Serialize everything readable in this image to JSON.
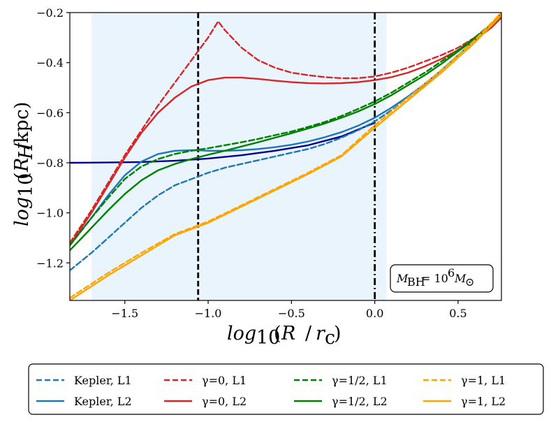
{
  "chart_data": {
    "type": "line",
    "title": "",
    "xlabel": "log10 (R / rc)",
    "ylabel": "log10 (RH/kpc)",
    "xlim": [
      -1.83,
      0.76
    ],
    "ylim": [
      -1.35,
      -0.2
    ],
    "x_ticks": [
      -1.5,
      -1.0,
      -0.5,
      0.0,
      0.5
    ],
    "x_tick_labels": [
      "−1.5",
      "−1.0",
      "−0.5",
      "0.0",
      "0.5"
    ],
    "y_ticks": [
      -1.2,
      -1.0,
      -0.8,
      -0.6,
      -0.4,
      -0.2
    ],
    "y_tick_labels": [
      "−1.2",
      "−1.0",
      "−0.8",
      "−0.6",
      "−0.4",
      "−0.2"
    ],
    "shaded_region_x": [
      -1.7,
      0.07
    ],
    "shaded_color": "#eaf4fc",
    "vlines": [
      {
        "name": "dashed-vline",
        "x": -1.06,
        "style": "dashed",
        "color": "#000000"
      },
      {
        "name": "dashdot-vline",
        "x": 0.0,
        "style": "dashdot",
        "color": "#000000"
      }
    ],
    "annotation": "M_BH = 10^6 M_sun",
    "annotation_position": "bottom-right",
    "legend_position": "bottom, outside",
    "series": [
      {
        "name": "Kepler, L1",
        "color": "#1f77b4",
        "style": "dashed",
        "in_legend": true,
        "x": [
          -1.83,
          -1.7,
          -1.6,
          -1.5,
          -1.4,
          -1.3,
          -1.2,
          -1.1,
          -1.06,
          -1.0,
          -0.9,
          -0.8,
          -0.7,
          -0.6,
          -0.5,
          -0.4,
          -0.3,
          -0.2,
          -0.1,
          0.0,
          0.1,
          0.2,
          0.3,
          0.4,
          0.5,
          0.6,
          0.7,
          0.76
        ],
        "y": [
          -1.23,
          -1.16,
          -1.1,
          -1.04,
          -0.98,
          -0.93,
          -0.89,
          -0.865,
          -0.855,
          -0.84,
          -0.82,
          -0.805,
          -0.79,
          -0.775,
          -0.76,
          -0.745,
          -0.725,
          -0.7,
          -0.67,
          -0.635,
          -0.59,
          -0.54,
          -0.49,
          -0.43,
          -0.37,
          -0.31,
          -0.25,
          -0.22
        ]
      },
      {
        "name": "Kepler, L2",
        "color": "#1f77b4",
        "style": "solid",
        "in_legend": true,
        "x": [
          -1.83,
          -1.7,
          -1.6,
          -1.5,
          -1.4,
          -1.3,
          -1.2,
          -1.1,
          -1.06,
          -1.0,
          -0.9,
          -0.8,
          -0.7,
          -0.6,
          -0.5,
          -0.4,
          -0.3,
          -0.2,
          -0.1,
          0.0,
          0.1,
          0.2,
          0.3,
          0.4,
          0.5,
          0.6,
          0.7,
          0.76
        ],
        "y": [
          -1.13,
          -1.02,
          -0.93,
          -0.85,
          -0.795,
          -0.765,
          -0.752,
          -0.75,
          -0.75,
          -0.752,
          -0.752,
          -0.75,
          -0.745,
          -0.738,
          -0.728,
          -0.715,
          -0.698,
          -0.678,
          -0.652,
          -0.62,
          -0.58,
          -0.535,
          -0.485,
          -0.43,
          -0.37,
          -0.31,
          -0.25,
          -0.21
        ]
      },
      {
        "name": "γ=0, L1",
        "color": "#d62728",
        "style": "dashed",
        "in_legend": true,
        "x": [
          -1.83,
          -1.7,
          -1.6,
          -1.5,
          -1.4,
          -1.3,
          -1.2,
          -1.1,
          -1.0,
          -0.94,
          -0.9,
          -0.8,
          -0.7,
          -0.6,
          -0.5,
          -0.4,
          -0.3,
          -0.2,
          -0.1,
          0.0,
          0.1,
          0.2,
          0.3,
          0.4,
          0.5,
          0.6,
          0.7,
          0.76
        ],
        "y": [
          -1.12,
          -0.99,
          -0.88,
          -0.77,
          -0.67,
          -0.57,
          -0.48,
          -0.39,
          -0.3,
          -0.235,
          -0.27,
          -0.34,
          -0.39,
          -0.42,
          -0.44,
          -0.45,
          -0.458,
          -0.462,
          -0.462,
          -0.455,
          -0.44,
          -0.42,
          -0.395,
          -0.37,
          -0.34,
          -0.3,
          -0.25,
          -0.2
        ]
      },
      {
        "name": "γ=0, L2",
        "color": "#d62728",
        "style": "solid",
        "in_legend": true,
        "x": [
          -1.83,
          -1.7,
          -1.6,
          -1.5,
          -1.4,
          -1.3,
          -1.2,
          -1.1,
          -1.0,
          -0.9,
          -0.8,
          -0.7,
          -0.6,
          -0.5,
          -0.4,
          -0.3,
          -0.2,
          -0.1,
          0.0,
          0.1,
          0.2,
          0.3,
          0.4,
          0.5,
          0.6,
          0.7,
          0.76
        ],
        "y": [
          -1.13,
          -1.0,
          -0.89,
          -0.78,
          -0.68,
          -0.6,
          -0.54,
          -0.495,
          -0.47,
          -0.46,
          -0.46,
          -0.465,
          -0.472,
          -0.478,
          -0.482,
          -0.483,
          -0.482,
          -0.478,
          -0.47,
          -0.458,
          -0.44,
          -0.415,
          -0.385,
          -0.35,
          -0.31,
          -0.26,
          -0.22
        ]
      },
      {
        "name": "γ=1/2, L1",
        "color": "#008000",
        "style": "dashed",
        "in_legend": true,
        "x": [
          -1.83,
          -1.7,
          -1.6,
          -1.5,
          -1.4,
          -1.3,
          -1.2,
          -1.1,
          -1.0,
          -0.9,
          -0.8,
          -0.7,
          -0.6,
          -0.5,
          -0.4,
          -0.3,
          -0.2,
          -0.1,
          0.0,
          0.1,
          0.2,
          0.3,
          0.4,
          0.5,
          0.6,
          0.7,
          0.76
        ],
        "y": [
          -1.13,
          -1.02,
          -0.94,
          -0.865,
          -0.815,
          -0.785,
          -0.765,
          -0.752,
          -0.742,
          -0.73,
          -0.718,
          -0.705,
          -0.69,
          -0.675,
          -0.657,
          -0.637,
          -0.613,
          -0.585,
          -0.555,
          -0.52,
          -0.48,
          -0.44,
          -0.395,
          -0.35,
          -0.3,
          -0.245,
          -0.21
        ]
      },
      {
        "name": "γ=1/2, L2",
        "color": "#008000",
        "style": "solid",
        "in_legend": true,
        "x": [
          -1.83,
          -1.7,
          -1.6,
          -1.5,
          -1.4,
          -1.3,
          -1.2,
          -1.1,
          -1.0,
          -0.9,
          -0.8,
          -0.7,
          -0.6,
          -0.5,
          -0.4,
          -0.3,
          -0.2,
          -0.1,
          0.0,
          0.1,
          0.2,
          0.3,
          0.4,
          0.5,
          0.6,
          0.7,
          0.76
        ],
        "y": [
          -1.15,
          -1.06,
          -0.99,
          -0.925,
          -0.87,
          -0.83,
          -0.805,
          -0.785,
          -0.768,
          -0.752,
          -0.735,
          -0.718,
          -0.7,
          -0.682,
          -0.663,
          -0.643,
          -0.62,
          -0.595,
          -0.565,
          -0.53,
          -0.49,
          -0.45,
          -0.405,
          -0.355,
          -0.305,
          -0.25,
          -0.215
        ]
      },
      {
        "name": "γ=1, L1",
        "color": "#ffa500",
        "style": "dashed",
        "in_legend": true,
        "x": [
          -1.83,
          -1.6,
          -1.4,
          -1.2,
          -1.0,
          -0.8,
          -0.6,
          -0.4,
          -0.2,
          0.0,
          0.2,
          0.4,
          0.6,
          0.76
        ],
        "y": [
          -1.34,
          -1.24,
          -1.16,
          -1.085,
          -1.035,
          -0.97,
          -0.905,
          -0.84,
          -0.77,
          -0.65,
          -0.54,
          -0.43,
          -0.31,
          -0.2
        ]
      },
      {
        "name": "γ=1, L2",
        "color": "#ffa500",
        "style": "solid",
        "in_legend": true,
        "x": [
          -1.83,
          -1.6,
          -1.4,
          -1.2,
          -1.0,
          -0.8,
          -0.6,
          -0.4,
          -0.2,
          0.0,
          0.2,
          0.4,
          0.6,
          0.76
        ],
        "y": [
          -1.35,
          -1.25,
          -1.17,
          -1.09,
          -1.04,
          -0.975,
          -0.91,
          -0.845,
          -0.775,
          -0.66,
          -0.55,
          -0.44,
          -0.32,
          -0.21
        ]
      },
      {
        "name": "Kepler reference",
        "color": "#00008b",
        "style": "solid",
        "in_legend": false,
        "x": [
          -1.83,
          -1.6,
          -1.4,
          -1.2,
          -1.0,
          -0.8,
          -0.6,
          -0.4,
          -0.2,
          0.0
        ],
        "y": [
          -0.8,
          -0.799,
          -0.797,
          -0.792,
          -0.783,
          -0.77,
          -0.752,
          -0.73,
          -0.695,
          -0.64
        ]
      }
    ],
    "legend": {
      "entries": [
        {
          "label": "Kepler, L1",
          "color": "#1f77b4",
          "style": "dashed"
        },
        {
          "label": "γ=0, L1",
          "color": "#d62728",
          "style": "dashed"
        },
        {
          "label": "γ=1/2, L1",
          "color": "#008000",
          "style": "dashed"
        },
        {
          "label": "γ=1, L1",
          "color": "#ffa500",
          "style": "dashed"
        },
        {
          "label": "Kepler, L2",
          "color": "#1f77b4",
          "style": "solid"
        },
        {
          "label": "γ=0, L2",
          "color": "#d62728",
          "style": "solid"
        },
        {
          "label": "γ=1/2, L2",
          "color": "#008000",
          "style": "solid"
        },
        {
          "label": "γ=1, L2",
          "color": "#ffa500",
          "style": "solid"
        }
      ]
    }
  }
}
